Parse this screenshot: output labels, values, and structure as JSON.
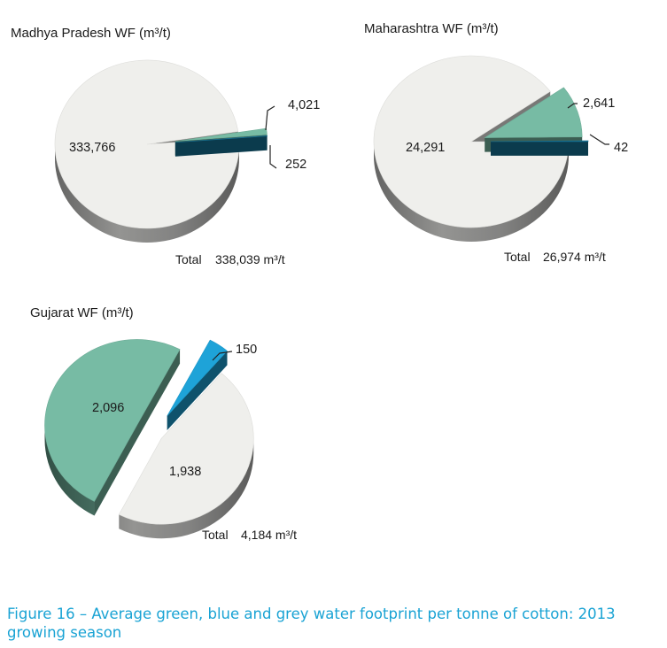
{
  "chart_data": [
    {
      "type": "pie",
      "title": "Madhya Pradesh WF (m³/t)",
      "slices": [
        {
          "label": "333,766",
          "value": 333766,
          "color": "#efefec"
        },
        {
          "label": "4,021",
          "value": 4021,
          "color": "#77bba4"
        },
        {
          "label": "252",
          "value": 252,
          "color": "#16769a"
        }
      ],
      "total_prefix": "Total",
      "total_value": "338,039 m³/t"
    },
    {
      "type": "pie",
      "title": "Maharashtra WF (m³/t)",
      "slices": [
        {
          "label": "24,291",
          "value": 24291,
          "color": "#efefec"
        },
        {
          "label": "2,641",
          "value": 2641,
          "color": "#77bba4"
        },
        {
          "label": "42",
          "value": 42,
          "color": "#16769a"
        }
      ],
      "total_prefix": "Total",
      "total_value": "26,974 m³/t"
    },
    {
      "type": "pie",
      "title": "Gujarat WF (m³/t)",
      "slices": [
        {
          "label": "1,938",
          "value": 1938,
          "color": "#efefec"
        },
        {
          "label": "2,096",
          "value": 2096,
          "color": "#77bba4"
        },
        {
          "label": "150",
          "value": 150,
          "color": "#1ea3d8"
        }
      ],
      "total_prefix": "Total",
      "total_value": "4,184 m³/t"
    }
  ],
  "caption": "Figure 16 – Average green, blue and grey water footprint per tonne of cotton: 2013 growing season"
}
